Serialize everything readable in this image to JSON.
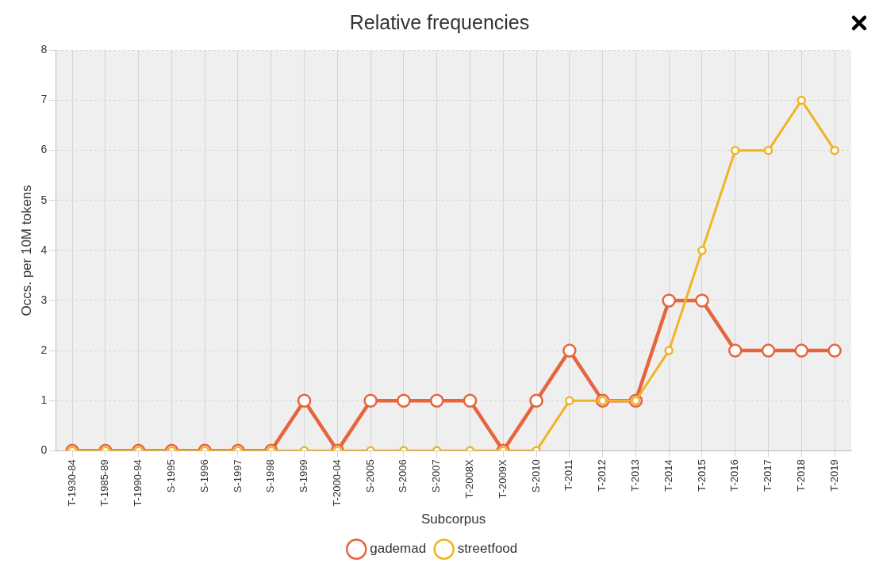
{
  "chart_data": {
    "type": "line",
    "title": "Relative frequencies",
    "xlabel": "Subcorpus",
    "ylabel": "Occs. per 10M tokens",
    "categories": [
      "T-1930-84",
      "T-1985-89",
      "T-1990-94",
      "S-1995",
      "S-1996",
      "S-1997",
      "S-1998",
      "S-1999",
      "T-2000-04",
      "S-2005",
      "S-2006",
      "S-2007",
      "T-2008X",
      "T-2009X",
      "S-2010",
      "T-2011",
      "T-2012",
      "T-2013",
      "T-2014",
      "T-2015",
      "T-2016",
      "T-2017",
      "T-2018",
      "T-2019"
    ],
    "series": [
      {
        "name": "gademad",
        "color": "#e8643c",
        "values": [
          0,
          0,
          0,
          0,
          0,
          0,
          0,
          1,
          0,
          1,
          1,
          1,
          1,
          0,
          1,
          2,
          1,
          1,
          3,
          3,
          2,
          2,
          2,
          2
        ]
      },
      {
        "name": "streetfood",
        "color": "#f0b323",
        "values": [
          0,
          0,
          0,
          0,
          0,
          0,
          0,
          0,
          0,
          0,
          0,
          0,
          0,
          0,
          0,
          1,
          1,
          1,
          2,
          4,
          6,
          6,
          7,
          6
        ]
      }
    ],
    "ylim": [
      0,
      8
    ],
    "yticks": [
      0,
      1,
      2,
      3,
      4,
      5,
      6,
      7,
      8
    ],
    "grid": true,
    "legend": "bottom",
    "marker": "circle",
    "line_style": "solid"
  }
}
